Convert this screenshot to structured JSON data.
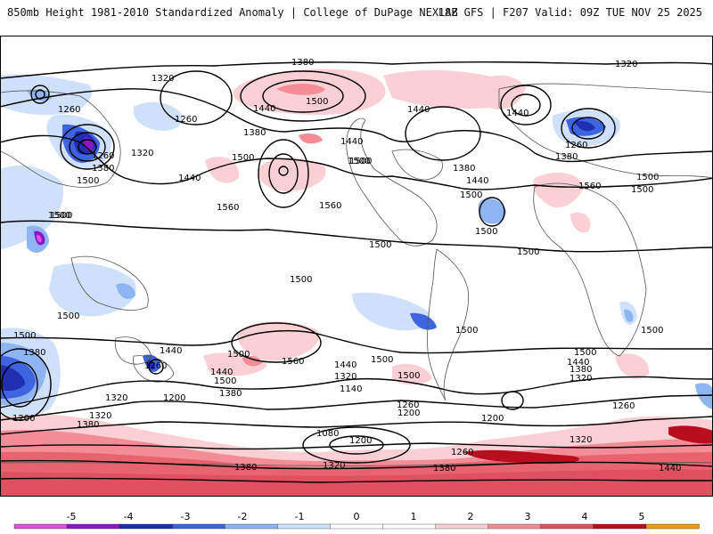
{
  "header": {
    "title": "850mb Height 1981-2010 Standardized Anomaly | College of DuPage NEXLAB",
    "run_info": "18Z GFS | F207 Valid: 09Z TUE NOV 25 2025"
  },
  "colorbar": {
    "ticks": [
      "-5",
      "-4",
      "-3",
      "-2",
      "-1",
      "0",
      "1",
      "2",
      "3",
      "4",
      "5"
    ],
    "colors": [
      "#e04fe0",
      "#8a17c4",
      "#1f2fb0",
      "#3f64e0",
      "#8fb4f2",
      "#cfe0fb",
      "#ffffff",
      "#ffffff",
      "#fbd0d4",
      "#f28d96",
      "#e0515f",
      "#b80e1e",
      "#f29a14"
    ]
  },
  "contour_labels": [
    {
      "id": "l1380a",
      "text": "1380"
    },
    {
      "id": "l1320a",
      "text": "1320"
    },
    {
      "id": "l1320b",
      "text": "1320"
    },
    {
      "id": "l1260a",
      "text": "1260"
    },
    {
      "id": "l1260b",
      "text": "1260"
    },
    {
      "id": "l1440a",
      "text": "1440"
    },
    {
      "id": "l1500a",
      "text": "1500"
    },
    {
      "id": "l1380b",
      "text": "1380"
    },
    {
      "id": "l1440b",
      "text": "1440"
    },
    {
      "id": "l1500b",
      "text": "1500"
    },
    {
      "id": "l1500c",
      "text": "1500"
    },
    {
      "id": "l1500d",
      "text": "1500"
    },
    {
      "id": "l1260c",
      "text": "1260"
    },
    {
      "id": "l1380c",
      "text": "1380"
    },
    {
      "id": "l1320c",
      "text": "1320"
    },
    {
      "id": "l1500e",
      "text": "1500"
    },
    {
      "id": "l1440c",
      "text": "1440"
    },
    {
      "id": "l1560a",
      "text": "1560"
    },
    {
      "id": "l1560b",
      "text": "1560"
    },
    {
      "id": "l1440d",
      "text": "1440"
    },
    {
      "id": "l1500f",
      "text": "1500"
    },
    {
      "id": "l1380d",
      "text": "1380"
    },
    {
      "id": "l1440e",
      "text": "1440"
    },
    {
      "id": "l1500g",
      "text": "1500"
    },
    {
      "id": "l1500h",
      "text": "1500"
    },
    {
      "id": "l1560c",
      "text": "1560"
    },
    {
      "id": "l1500i",
      "text": "1500"
    },
    {
      "id": "l1440f",
      "text": "1440"
    },
    {
      "id": "l1380e",
      "text": "1380"
    },
    {
      "id": "l1260d",
      "text": "1260"
    },
    {
      "id": "l1500j",
      "text": "1500"
    },
    {
      "id": "l1500k",
      "text": "1500"
    },
    {
      "id": "l1500l",
      "text": "1500"
    },
    {
      "id": "l1500m",
      "text": "1500"
    },
    {
      "id": "l1500n",
      "text": "1500"
    },
    {
      "id": "l1500o",
      "text": "1500"
    },
    {
      "id": "l1500p",
      "text": "1500"
    },
    {
      "id": "l1500q",
      "text": "1500"
    },
    {
      "id": "l1500r",
      "text": "1500"
    },
    {
      "id": "l1380f",
      "text": "1380"
    },
    {
      "id": "l1440g",
      "text": "1440"
    },
    {
      "id": "l1260e",
      "text": "1260"
    },
    {
      "id": "l1320d",
      "text": "1320"
    },
    {
      "id": "l1200a",
      "text": "1200"
    },
    {
      "id": "l1320e",
      "text": "1320"
    },
    {
      "id": "l1380g",
      "text": "1380"
    },
    {
      "id": "l1500s",
      "text": "1500"
    },
    {
      "id": "l1560d",
      "text": "1560"
    },
    {
      "id": "l1500t",
      "text": "1500"
    },
    {
      "id": "l1440h",
      "text": "1440"
    },
    {
      "id": "l1380h",
      "text": "1380"
    },
    {
      "id": "l1200b",
      "text": "1200"
    },
    {
      "id": "l1440i",
      "text": "1440"
    },
    {
      "id": "l1320f",
      "text": "1320"
    },
    {
      "id": "l1140a",
      "text": "1140"
    },
    {
      "id": "l1260f",
      "text": "1260"
    },
    {
      "id": "l1200c",
      "text": "1200"
    },
    {
      "id": "l1500u",
      "text": "1500"
    },
    {
      "id": "l1080a",
      "text": "1080"
    },
    {
      "id": "l1200d",
      "text": "1200"
    },
    {
      "id": "l1260g",
      "text": "1260"
    },
    {
      "id": "l1380i",
      "text": "1380"
    },
    {
      "id": "l1320g",
      "text": "1320"
    },
    {
      "id": "l1380j",
      "text": "1380"
    },
    {
      "id": "l1200e",
      "text": "1200"
    },
    {
      "id": "l1500v",
      "text": "1500"
    },
    {
      "id": "l1440j",
      "text": "1440"
    },
    {
      "id": "l1380k",
      "text": "1380"
    },
    {
      "id": "l1320h",
      "text": "1320"
    },
    {
      "id": "l1260h",
      "text": "1260"
    },
    {
      "id": "l1320i",
      "text": "1320"
    },
    {
      "id": "l1440k",
      "text": "1440"
    },
    {
      "id": "l1500w",
      "text": "1500"
    }
  ]
}
